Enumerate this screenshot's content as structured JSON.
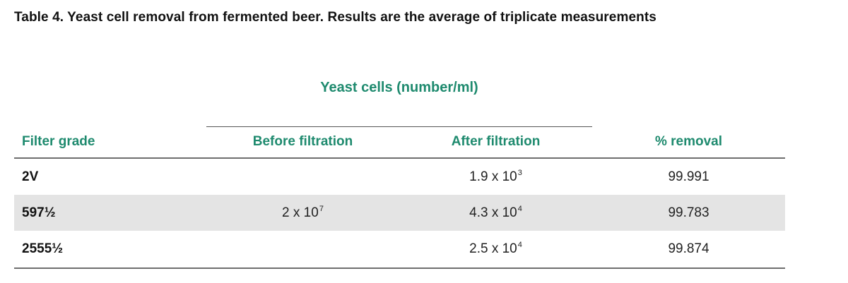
{
  "caption": "Table 4. Yeast cell removal from fermented beer. Results are the average of triplicate measurements",
  "group_header": "Yeast cells (number/ml)",
  "columns": {
    "grade": "Filter grade",
    "before": "Before filtration",
    "after": "After filtration",
    "removal": "% removal"
  },
  "before_value": {
    "base": "2 x 10",
    "exp": "7"
  },
  "rows": [
    {
      "grade": "2V",
      "after_base": "1.9 x 10",
      "after_exp": "3",
      "removal": "99.991"
    },
    {
      "grade": "597½",
      "after_base": "4.3 x 10",
      "after_exp": "4",
      "removal": "99.783"
    },
    {
      "grade": "2555½",
      "after_base": "2.5 x 10",
      "after_exp": "4",
      "removal": "99.874"
    }
  ],
  "colors": {
    "header_green": "#1e8a6e",
    "row_shade": "#e4e4e4",
    "rule": "#6e6e6e"
  }
}
